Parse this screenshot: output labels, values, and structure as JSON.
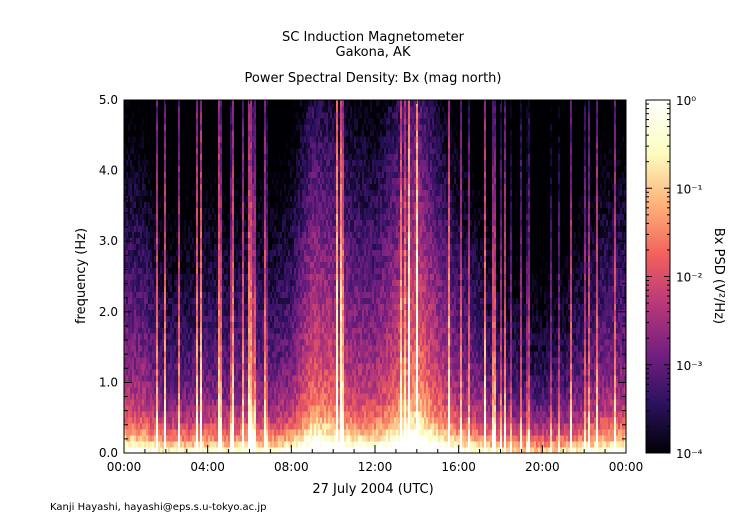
{
  "title_line1": "SC Induction Magnetometer",
  "title_line2": "Gakona, AK",
  "subtitle": "Power Spectral Density: Bx (mag north)",
  "credit": "Kanji Hayashi, hayashi@eps.s.u-tokyo.ac.jp",
  "chart_data": {
    "type": "heatmap",
    "title": "Power Spectral Density: Bx (mag north)",
    "xlabel": "27 July 2004 (UTC)",
    "ylabel": "frequency (Hz)",
    "colorbar_label": "Bx PSD (V²/Hz)",
    "x_ticks": [
      "00:00",
      "04:00",
      "08:00",
      "12:00",
      "16:00",
      "20:00",
      "00:00"
    ],
    "x_range_hours": [
      0,
      24
    ],
    "y_ticks": [
      "0.0",
      "1.0",
      "2.0",
      "3.0",
      "4.0",
      "5.0"
    ],
    "ylim": [
      0,
      5
    ],
    "colorbar_ticks": [
      "10⁻⁴",
      "10⁻³",
      "10⁻²",
      "10⁻¹",
      "10⁰"
    ],
    "colorbar_range_log10": [
      -4,
      0
    ],
    "colorscale": [
      "#000004",
      "#2c115f",
      "#721f81",
      "#b73779",
      "#f1605d",
      "#feb078",
      "#fcfdbf",
      "#ffffff"
    ],
    "activity_by_hour": [
      {
        "h": 0,
        "level": 0.45
      },
      {
        "h": 1,
        "level": 0.42
      },
      {
        "h": 2,
        "level": 0.3
      },
      {
        "h": 3,
        "level": 0.32
      },
      {
        "h": 4,
        "level": 0.35
      },
      {
        "h": 5,
        "level": 0.33
      },
      {
        "h": 6,
        "level": 0.38
      },
      {
        "h": 7,
        "level": 0.34
      },
      {
        "h": 8,
        "level": 0.4
      },
      {
        "h": 9,
        "level": 0.62
      },
      {
        "h": 10,
        "level": 0.58
      },
      {
        "h": 11,
        "level": 0.5
      },
      {
        "h": 12,
        "level": 0.48
      },
      {
        "h": 13,
        "level": 0.6
      },
      {
        "h": 14,
        "level": 0.72
      },
      {
        "h": 15,
        "level": 0.55
      },
      {
        "h": 16,
        "level": 0.42
      },
      {
        "h": 17,
        "level": 0.35
      },
      {
        "h": 18,
        "level": 0.28
      },
      {
        "h": 19,
        "level": 0.24
      },
      {
        "h": 20,
        "level": 0.22
      },
      {
        "h": 21,
        "level": 0.26
      },
      {
        "h": 22,
        "level": 0.34
      },
      {
        "h": 23,
        "level": 0.4
      },
      {
        "h": 24,
        "level": 0.42
      }
    ]
  }
}
